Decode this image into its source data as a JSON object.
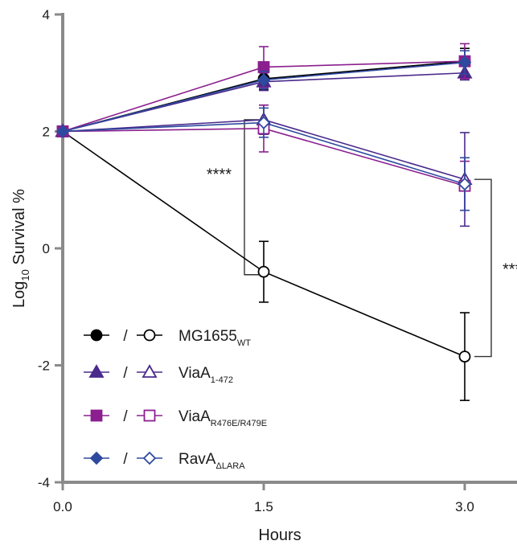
{
  "chart_data": {
    "type": "line",
    "xlabel": "Hours",
    "ylabel": {
      "prefix": "Log",
      "sub": "10",
      "suffix": " Survival %"
    },
    "xlim": [
      0,
      3.0
    ],
    "ylim": [
      -4,
      4
    ],
    "x_ticks": [
      "0.0",
      "1.5",
      "3.0"
    ],
    "y_ticks": [
      "4",
      "2",
      "0",
      "-2",
      "-4"
    ],
    "grid": false,
    "legend_position": "bottom-left",
    "x": [
      0,
      1.5,
      3.0
    ],
    "series": [
      {
        "name": "MG1655 WT",
        "condition": "filled",
        "marker": "circle",
        "color": "#000000",
        "values": [
          2.0,
          2.9,
          3.2
        ],
        "err": [
          0,
          0.18,
          0.22
        ]
      },
      {
        "name": "ViaA 1-472",
        "condition": "filled",
        "marker": "triangle",
        "color": "#4a2a8c",
        "values": [
          2.0,
          2.85,
          3.0
        ],
        "err": [
          0,
          0.15,
          0.12
        ]
      },
      {
        "name": "ViaA R476E/R479E",
        "condition": "filled",
        "marker": "square",
        "color": "#8b1f8f",
        "values": [
          2.0,
          3.1,
          3.2
        ],
        "err": [
          0,
          0.35,
          0.3
        ]
      },
      {
        "name": "RavA ΔLARA",
        "condition": "filled",
        "marker": "diamond",
        "color": "#2e4a9e",
        "values": [
          2.0,
          2.88,
          3.18
        ],
        "err": [
          0,
          0.15,
          0.2
        ]
      },
      {
        "name": "MG1655 WT",
        "condition": "open",
        "marker": "circle",
        "color": "#000000",
        "values": [
          2.0,
          -0.4,
          -1.85
        ],
        "err": [
          0,
          0.52,
          0.75
        ]
      },
      {
        "name": "ViaA 1-472",
        "condition": "open",
        "marker": "triangle",
        "color": "#4a2a8c",
        "values": [
          2.0,
          2.2,
          1.18
        ],
        "err": [
          0,
          0.25,
          0.8
        ]
      },
      {
        "name": "ViaA R476E/R479E",
        "condition": "open",
        "marker": "square",
        "color": "#8b1f8f",
        "values": [
          2.0,
          2.05,
          1.07
        ],
        "err": [
          0,
          0.4,
          0.42
        ]
      },
      {
        "name": "RavA ΔLARA",
        "condition": "open",
        "marker": "diamond",
        "color": "#2e4a9e",
        "values": [
          2.0,
          2.15,
          1.1
        ],
        "err": [
          0,
          0.25,
          0.45
        ]
      }
    ],
    "legend": [
      {
        "main": "MG1655",
        "sub": "WT",
        "color": "#000000",
        "marker": "circle"
      },
      {
        "main": "ViaA",
        "sub": "1-472",
        "color": "#4a2a8c",
        "marker": "triangle"
      },
      {
        "main": "ViaA",
        "sub": "R476E/R479E",
        "color": "#8b1f8f",
        "marker": "square"
      },
      {
        "main": "RavA",
        "sub": "ΔLARA",
        "color": "#2e4a9e",
        "marker": "diamond"
      }
    ],
    "legend_separator": "/",
    "annotations": [
      {
        "label": "****",
        "x": 1.5,
        "y_from": 2.2,
        "y_to": -0.45,
        "side": "left"
      },
      {
        "label": "***",
        "x": 3.0,
        "y_from": 1.18,
        "y_to": -1.85,
        "side": "right"
      }
    ]
  }
}
